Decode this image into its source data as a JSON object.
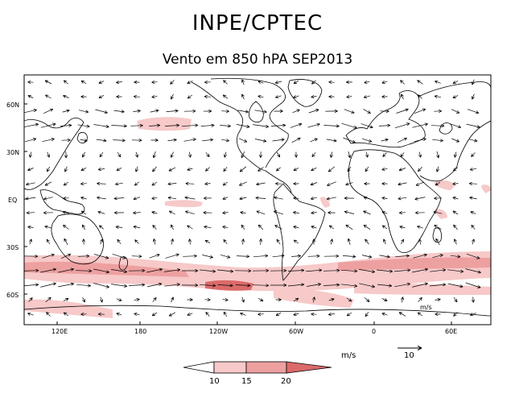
{
  "header": {
    "title": "INPE/CPTEC",
    "subtitle": "Vento em 850 hPA SEP2013"
  },
  "map": {
    "variable": "wind vectors at 850 hPa",
    "lon_range": [
      90,
      80
    ],
    "lat_range": [
      -80,
      80
    ],
    "y_axis_labels": [
      "60N",
      "30N",
      "EQ",
      "30S",
      "60S"
    ],
    "x_axis_labels": [
      "120E",
      "180",
      "120W",
      "60W",
      "0",
      "60E"
    ],
    "shading_colors": [
      "#f7c9c9",
      "#eda0a0",
      "#dc6a6a"
    ],
    "coastline_color": "#000000"
  },
  "colorbar": {
    "unit_label": "m/s",
    "tick_labels": [
      "10",
      "15",
      "20"
    ],
    "colors": [
      "#ffffff",
      "#f7c9c9",
      "#eda0a0",
      "#dc6a6a"
    ]
  },
  "reference_vector": {
    "label": "10",
    "magnitude": 10
  },
  "corner_note": "m/s"
}
